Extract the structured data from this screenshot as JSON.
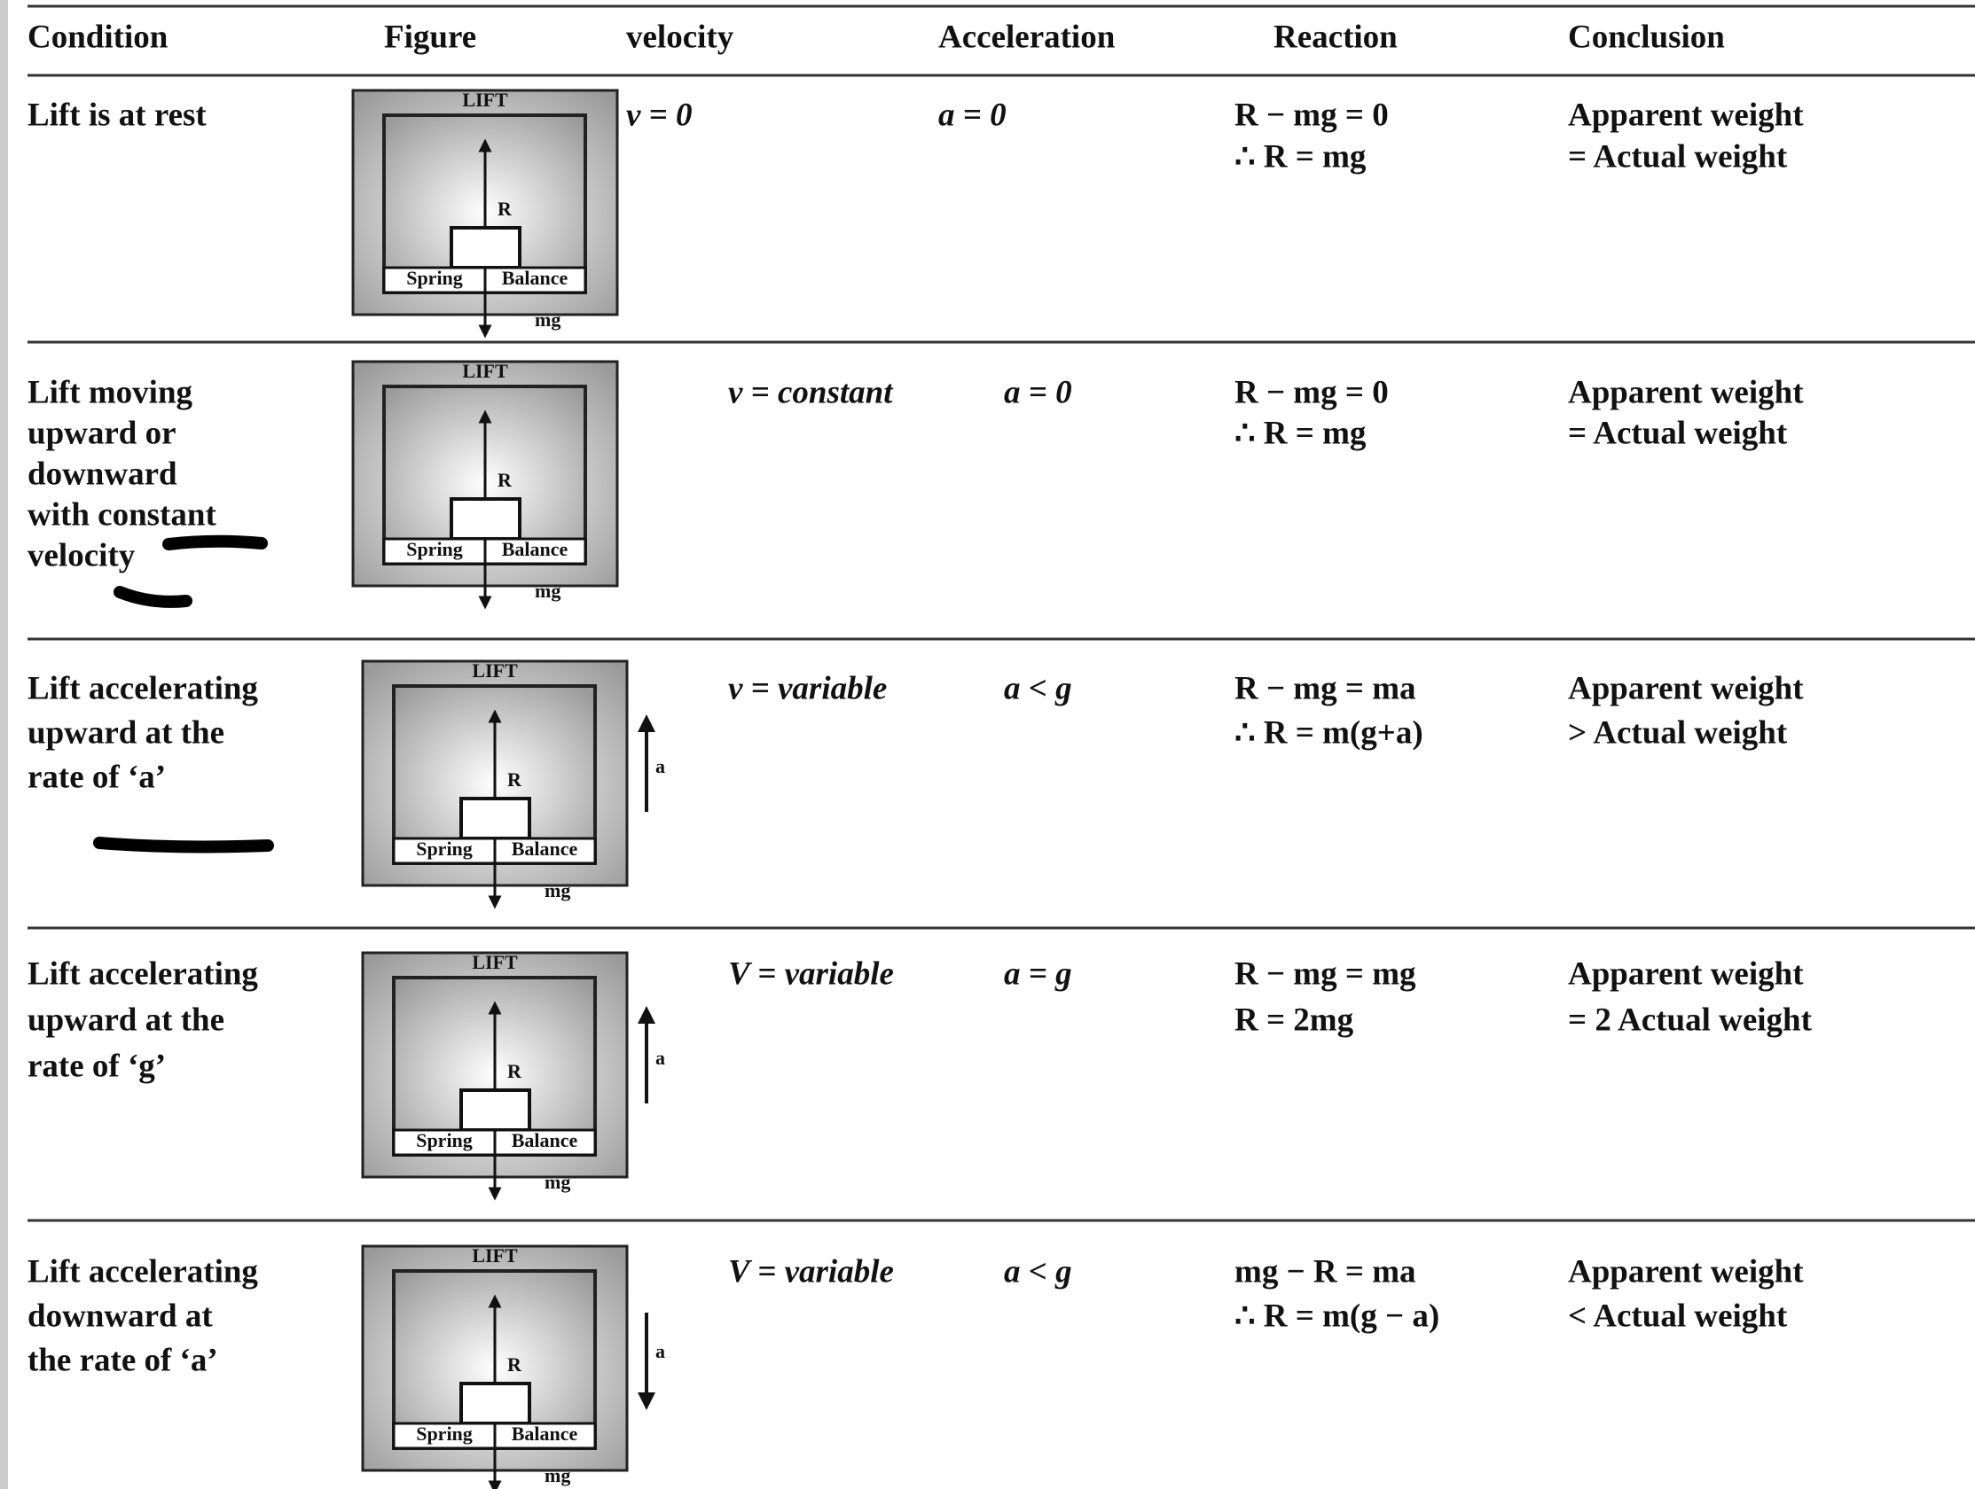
{
  "table": {
    "headers": [
      "Condition",
      "Figure",
      "velocity",
      "Acceleration",
      "Reaction",
      "Conclusion"
    ],
    "rows": [
      {
        "condition": [
          "Lift is at rest"
        ],
        "velocity": "v = 0",
        "acceleration": "a = 0",
        "reaction": [
          "R − mg = 0",
          "∴ R = mg"
        ],
        "conclusion": [
          "Apparent weight",
          "= Actual weight"
        ],
        "figure": {
          "lift": "LIFT",
          "reaction": "R",
          "spring": "Spring",
          "balance": "Balance",
          "weight": "mg"
        }
      },
      {
        "condition": [
          "Lift moving",
          "upward or",
          "downward",
          "with constant",
          "velocity"
        ],
        "velocity": "v = constant",
        "acceleration": "a = 0",
        "reaction": [
          "R − mg = 0",
          "∴ R = mg"
        ],
        "conclusion": [
          "Apparent weight",
          "= Actual weight"
        ],
        "figure": {
          "lift": "LIFT",
          "reaction": "R",
          "spring": "Spring",
          "balance": "Balance",
          "weight": "mg"
        }
      },
      {
        "condition": [
          "Lift accelerating",
          "upward at the",
          "rate of ‘a’"
        ],
        "velocity": "v = variable",
        "acceleration": "a < g",
        "reaction": [
          "R − mg = ma",
          "∴ R = m(g+a)"
        ],
        "conclusion": [
          "Apparent weight",
          "> Actual weight"
        ],
        "figure": {
          "lift": "LIFT",
          "reaction": "R",
          "spring": "Spring",
          "balance": "Balance",
          "weight": "mg",
          "accel": "a"
        }
      },
      {
        "condition": [
          "Lift accelerating",
          "upward at the",
          "rate of ‘g’"
        ],
        "velocity": "V = variable",
        "acceleration": "a = g",
        "reaction": [
          "R − mg = mg",
          "R = 2mg"
        ],
        "conclusion": [
          "Apparent weight",
          "= 2 Actual weight"
        ],
        "figure": {
          "lift": "LIFT",
          "reaction": "R",
          "spring": "Spring",
          "balance": "Balance",
          "weight": "mg",
          "accel": "a"
        }
      },
      {
        "condition": [
          "Lift accelerating",
          "downward at",
          "the rate of ‘a’"
        ],
        "velocity": "V = variable",
        "acceleration": "a < g",
        "reaction": [
          "mg − R = ma",
          "∴ R = m(g − a)"
        ],
        "conclusion": [
          "Apparent weight",
          "< Actual weight"
        ],
        "figure": {
          "lift": "LIFT",
          "reaction": "R",
          "spring": "Spring",
          "balance": "Balance",
          "weight": "mg",
          "accel": "a"
        }
      }
    ]
  }
}
